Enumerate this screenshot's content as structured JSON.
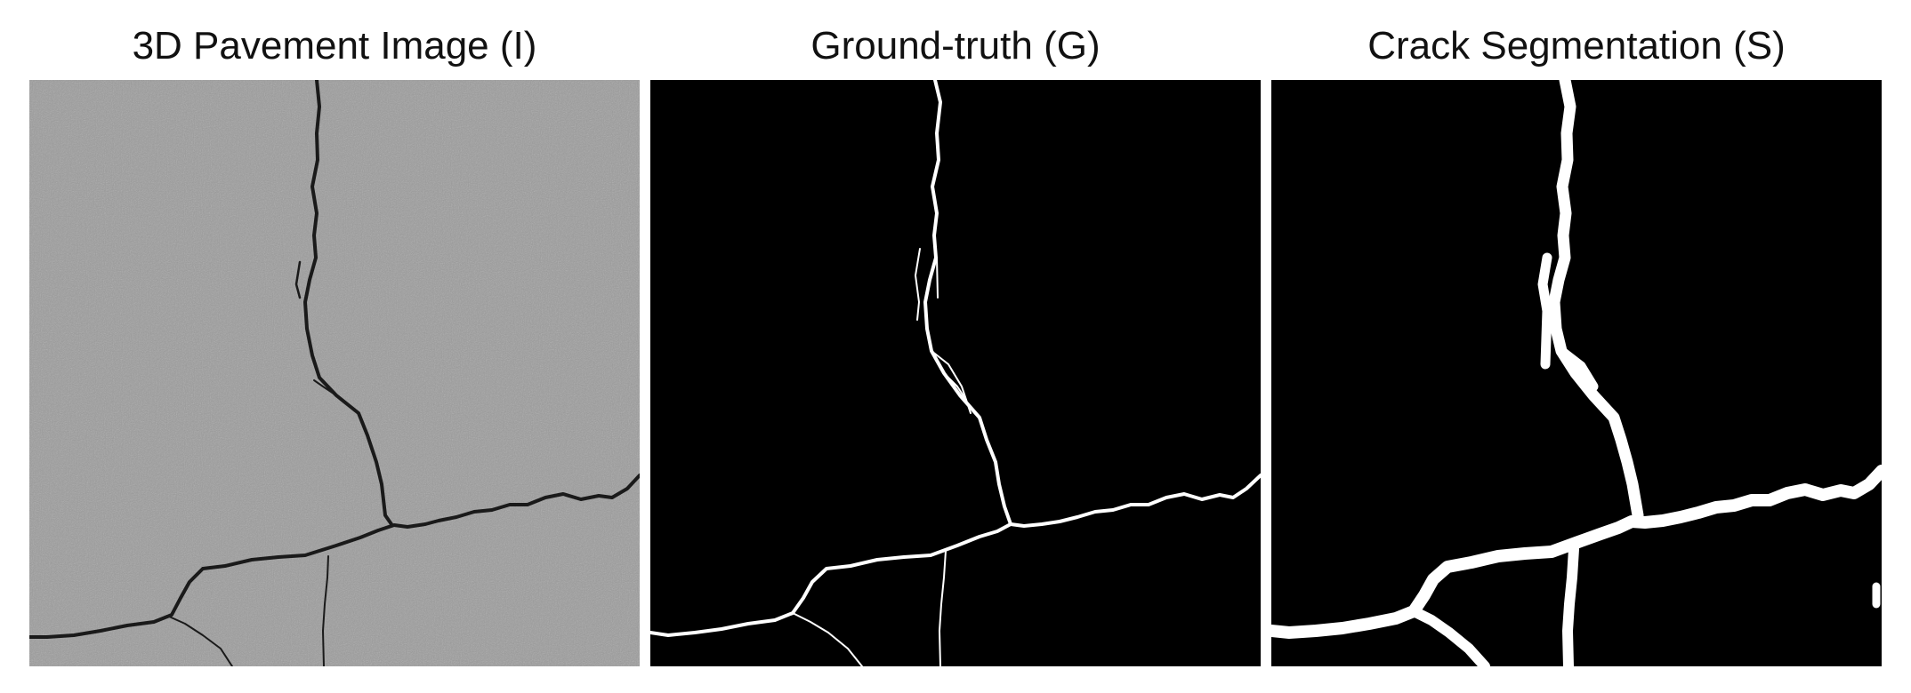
{
  "panels": [
    {
      "title": "3D Pavement Image (I)",
      "image": "3d-pavement-image",
      "background_color": "#9c9c9c",
      "crack_color": "#1a1a1a"
    },
    {
      "title": "Ground-truth (G)",
      "image": "ground-truth-mask",
      "background_color": "#000000",
      "crack_color": "#ffffff"
    },
    {
      "title": "Crack Segmentation (S)",
      "image": "crack-segmentation-mask",
      "background_color": "#000000",
      "crack_color": "#ffffff"
    }
  ]
}
